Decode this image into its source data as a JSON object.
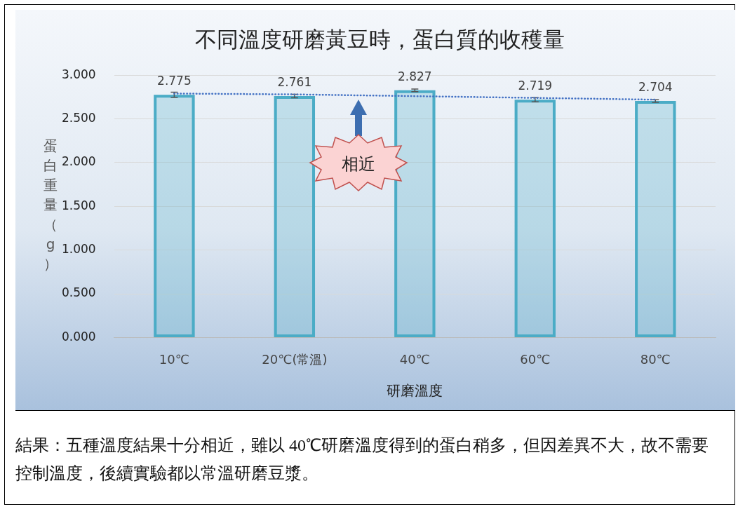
{
  "chart_data": {
    "type": "bar",
    "title": "不同溫度研磨黃豆時，蛋白質的收穫量",
    "xlabel": "研磨溫度",
    "ylabel": "蛋白重量（g）",
    "categories": [
      "10℃",
      "20℃(常溫)",
      "40℃",
      "60℃",
      "80℃"
    ],
    "series": [
      {
        "color": "#4bacc6",
        "values": [
          2.775,
          2.761,
          2.827,
          2.719,
          2.704
        ],
        "value_labels": [
          "2.775",
          "2.761",
          "2.827",
          "2.719",
          "2.704"
        ],
        "errors": [
          0.03,
          0.02,
          0.015,
          0.025,
          0.015
        ]
      },
      {
        "type": "line",
        "color": "#4472c4",
        "values": [
          2.79,
          2.78,
          2.76,
          2.74,
          2.72
        ],
        "marker": "none",
        "line_style": "dotted"
      }
    ],
    "ylim": [
      0,
      3
    ],
    "yticks": [
      {
        "value": 0,
        "label": "0.000"
      },
      {
        "value": 0.5,
        "label": "0.500"
      },
      {
        "value": 1,
        "label": "1.000"
      },
      {
        "value": 1.5,
        "label": "1.500"
      },
      {
        "value": 2,
        "label": "2.000"
      },
      {
        "value": 2.5,
        "label": "2.500"
      },
      {
        "value": 3,
        "label": "3.000"
      }
    ],
    "grid": "y",
    "legend": false,
    "annotations": [
      "相近",
      "結果：五種溫度結果十分相近，雖以 40℃研磨溫度得到的蛋白稍多，但因差異不大，故不需要控制溫度，後續實驗都以常溫研磨豆漿。"
    ]
  }
}
